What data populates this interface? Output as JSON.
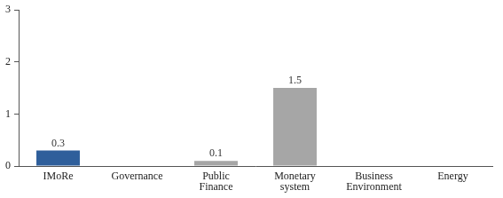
{
  "chart_data": {
    "type": "bar",
    "categories": [
      "IMoRe",
      "Governance",
      "Public Finance",
      "Monetary system",
      "Business Environment",
      "Energy"
    ],
    "values": [
      0.3,
      null,
      0.1,
      1.5,
      null,
      null
    ],
    "colors": [
      "#2f5f9b",
      "#a6a6a6",
      "#a6a6a6",
      "#a6a6a6",
      "#a6a6a6",
      "#a6a6a6"
    ],
    "ylim": [
      0,
      3
    ],
    "yticks": [
      0,
      1,
      2,
      3
    ],
    "grid": false,
    "data_labels": true
  }
}
